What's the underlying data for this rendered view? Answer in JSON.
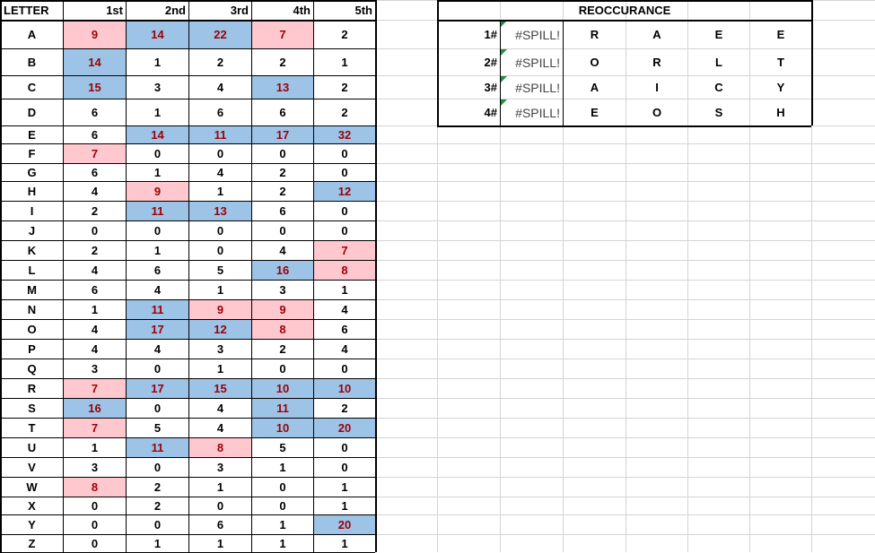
{
  "headers": [
    "LETTER",
    "1st",
    "2nd",
    "3rd",
    "4th",
    "5th"
  ],
  "letters": [
    {
      "letter": "A",
      "counts": [
        {
          "v": "9",
          "h": "pink"
        },
        {
          "v": "14",
          "h": "blue"
        },
        {
          "v": "22",
          "h": "blue"
        },
        {
          "v": "7",
          "h": "pink"
        },
        {
          "v": "2",
          "h": ""
        }
      ]
    },
    {
      "letter": "B",
      "counts": [
        {
          "v": "14",
          "h": "blue"
        },
        {
          "v": "1",
          "h": ""
        },
        {
          "v": "2",
          "h": ""
        },
        {
          "v": "2",
          "h": ""
        },
        {
          "v": "1",
          "h": ""
        }
      ]
    },
    {
      "letter": "C",
      "counts": [
        {
          "v": "15",
          "h": "blue"
        },
        {
          "v": "3",
          "h": ""
        },
        {
          "v": "4",
          "h": ""
        },
        {
          "v": "13",
          "h": "blue"
        },
        {
          "v": "2",
          "h": ""
        }
      ]
    },
    {
      "letter": "D",
      "counts": [
        {
          "v": "6",
          "h": ""
        },
        {
          "v": "1",
          "h": ""
        },
        {
          "v": "6",
          "h": ""
        },
        {
          "v": "6",
          "h": ""
        },
        {
          "v": "2",
          "h": ""
        }
      ]
    },
    {
      "letter": "E",
      "counts": [
        {
          "v": "6",
          "h": ""
        },
        {
          "v": "14",
          "h": "blue"
        },
        {
          "v": "11",
          "h": "blue"
        },
        {
          "v": "17",
          "h": "blue"
        },
        {
          "v": "32",
          "h": "blue"
        }
      ]
    },
    {
      "letter": "F",
      "counts": [
        {
          "v": "7",
          "h": "pink"
        },
        {
          "v": "0",
          "h": ""
        },
        {
          "v": "0",
          "h": ""
        },
        {
          "v": "0",
          "h": ""
        },
        {
          "v": "0",
          "h": ""
        }
      ]
    },
    {
      "letter": "G",
      "counts": [
        {
          "v": "6",
          "h": ""
        },
        {
          "v": "1",
          "h": ""
        },
        {
          "v": "4",
          "h": ""
        },
        {
          "v": "2",
          "h": ""
        },
        {
          "v": "0",
          "h": ""
        }
      ]
    },
    {
      "letter": "H",
      "counts": [
        {
          "v": "4",
          "h": ""
        },
        {
          "v": "9",
          "h": "pink"
        },
        {
          "v": "1",
          "h": ""
        },
        {
          "v": "2",
          "h": ""
        },
        {
          "v": "12",
          "h": "blue"
        }
      ]
    },
    {
      "letter": "I",
      "counts": [
        {
          "v": "2",
          "h": ""
        },
        {
          "v": "11",
          "h": "blue"
        },
        {
          "v": "13",
          "h": "blue"
        },
        {
          "v": "6",
          "h": ""
        },
        {
          "v": "0",
          "h": ""
        }
      ]
    },
    {
      "letter": "J",
      "counts": [
        {
          "v": "0",
          "h": ""
        },
        {
          "v": "0",
          "h": ""
        },
        {
          "v": "0",
          "h": ""
        },
        {
          "v": "0",
          "h": ""
        },
        {
          "v": "0",
          "h": ""
        }
      ]
    },
    {
      "letter": "K",
      "counts": [
        {
          "v": "2",
          "h": ""
        },
        {
          "v": "1",
          "h": ""
        },
        {
          "v": "0",
          "h": ""
        },
        {
          "v": "4",
          "h": ""
        },
        {
          "v": "7",
          "h": "pink"
        }
      ]
    },
    {
      "letter": "L",
      "counts": [
        {
          "v": "4",
          "h": ""
        },
        {
          "v": "6",
          "h": ""
        },
        {
          "v": "5",
          "h": ""
        },
        {
          "v": "16",
          "h": "blue"
        },
        {
          "v": "8",
          "h": "pink"
        }
      ]
    },
    {
      "letter": "M",
      "counts": [
        {
          "v": "6",
          "h": ""
        },
        {
          "v": "4",
          "h": ""
        },
        {
          "v": "1",
          "h": ""
        },
        {
          "v": "3",
          "h": ""
        },
        {
          "v": "1",
          "h": ""
        }
      ]
    },
    {
      "letter": "N",
      "counts": [
        {
          "v": "1",
          "h": ""
        },
        {
          "v": "11",
          "h": "blue"
        },
        {
          "v": "9",
          "h": "pink"
        },
        {
          "v": "9",
          "h": "pink"
        },
        {
          "v": "4",
          "h": ""
        }
      ]
    },
    {
      "letter": "O",
      "counts": [
        {
          "v": "4",
          "h": ""
        },
        {
          "v": "17",
          "h": "blue"
        },
        {
          "v": "12",
          "h": "blue"
        },
        {
          "v": "8",
          "h": "pink"
        },
        {
          "v": "6",
          "h": ""
        }
      ]
    },
    {
      "letter": "P",
      "counts": [
        {
          "v": "4",
          "h": ""
        },
        {
          "v": "4",
          "h": ""
        },
        {
          "v": "3",
          "h": ""
        },
        {
          "v": "2",
          "h": ""
        },
        {
          "v": "4",
          "h": ""
        }
      ]
    },
    {
      "letter": "Q",
      "counts": [
        {
          "v": "3",
          "h": ""
        },
        {
          "v": "0",
          "h": ""
        },
        {
          "v": "1",
          "h": ""
        },
        {
          "v": "0",
          "h": ""
        },
        {
          "v": "0",
          "h": ""
        }
      ]
    },
    {
      "letter": "R",
      "counts": [
        {
          "v": "7",
          "h": "pink"
        },
        {
          "v": "17",
          "h": "blue"
        },
        {
          "v": "15",
          "h": "blue"
        },
        {
          "v": "10",
          "h": "blue"
        },
        {
          "v": "10",
          "h": "blue"
        }
      ]
    },
    {
      "letter": "S",
      "counts": [
        {
          "v": "16",
          "h": "blue"
        },
        {
          "v": "0",
          "h": ""
        },
        {
          "v": "4",
          "h": ""
        },
        {
          "v": "11",
          "h": "blue"
        },
        {
          "v": "2",
          "h": ""
        }
      ]
    },
    {
      "letter": "T",
      "counts": [
        {
          "v": "7",
          "h": "pink"
        },
        {
          "v": "5",
          "h": ""
        },
        {
          "v": "4",
          "h": ""
        },
        {
          "v": "10",
          "h": "blue"
        },
        {
          "v": "20",
          "h": "blue"
        }
      ]
    },
    {
      "letter": "U",
      "counts": [
        {
          "v": "1",
          "h": ""
        },
        {
          "v": "11",
          "h": "blue"
        },
        {
          "v": "8",
          "h": "pink"
        },
        {
          "v": "5",
          "h": ""
        },
        {
          "v": "0",
          "h": ""
        }
      ]
    },
    {
      "letter": "V",
      "counts": [
        {
          "v": "3",
          "h": ""
        },
        {
          "v": "0",
          "h": ""
        },
        {
          "v": "3",
          "h": ""
        },
        {
          "v": "1",
          "h": ""
        },
        {
          "v": "0",
          "h": ""
        }
      ]
    },
    {
      "letter": "W",
      "counts": [
        {
          "v": "8",
          "h": "pink"
        },
        {
          "v": "2",
          "h": ""
        },
        {
          "v": "1",
          "h": ""
        },
        {
          "v": "0",
          "h": ""
        },
        {
          "v": "1",
          "h": ""
        }
      ]
    },
    {
      "letter": "X",
      "counts": [
        {
          "v": "0",
          "h": ""
        },
        {
          "v": "2",
          "h": ""
        },
        {
          "v": "0",
          "h": ""
        },
        {
          "v": "0",
          "h": ""
        },
        {
          "v": "1",
          "h": ""
        }
      ]
    },
    {
      "letter": "Y",
      "counts": [
        {
          "v": "0",
          "h": ""
        },
        {
          "v": "0",
          "h": ""
        },
        {
          "v": "6",
          "h": ""
        },
        {
          "v": "1",
          "h": ""
        },
        {
          "v": "20",
          "h": "blue"
        }
      ]
    },
    {
      "letter": "Z",
      "counts": [
        {
          "v": "0",
          "h": ""
        },
        {
          "v": "1",
          "h": ""
        },
        {
          "v": "1",
          "h": ""
        },
        {
          "v": "1",
          "h": ""
        },
        {
          "v": "1",
          "h": ""
        }
      ]
    }
  ],
  "reoccurance": {
    "title": "REOCCURANCE",
    "rows": [
      {
        "rank": "1#",
        "spill": "#SPILL!",
        "letters": [
          "R",
          "A",
          "E",
          "E"
        ]
      },
      {
        "rank": "2#",
        "spill": "#SPILL!",
        "letters": [
          "O",
          "R",
          "L",
          "T"
        ]
      },
      {
        "rank": "3#",
        "spill": "#SPILL!",
        "letters": [
          "A",
          "I",
          "C",
          "Y"
        ]
      },
      {
        "rank": "4#",
        "spill": "#SPILL!",
        "letters": [
          "E",
          "O",
          "S",
          "H"
        ]
      }
    ]
  },
  "colors": {
    "highlight_blue": "#9dc3e6",
    "highlight_pink": "#ffc7ce",
    "highlight_text": "#9c0006",
    "gridline": "#d4d4d4",
    "error_indicator": "#1e8e3e"
  }
}
